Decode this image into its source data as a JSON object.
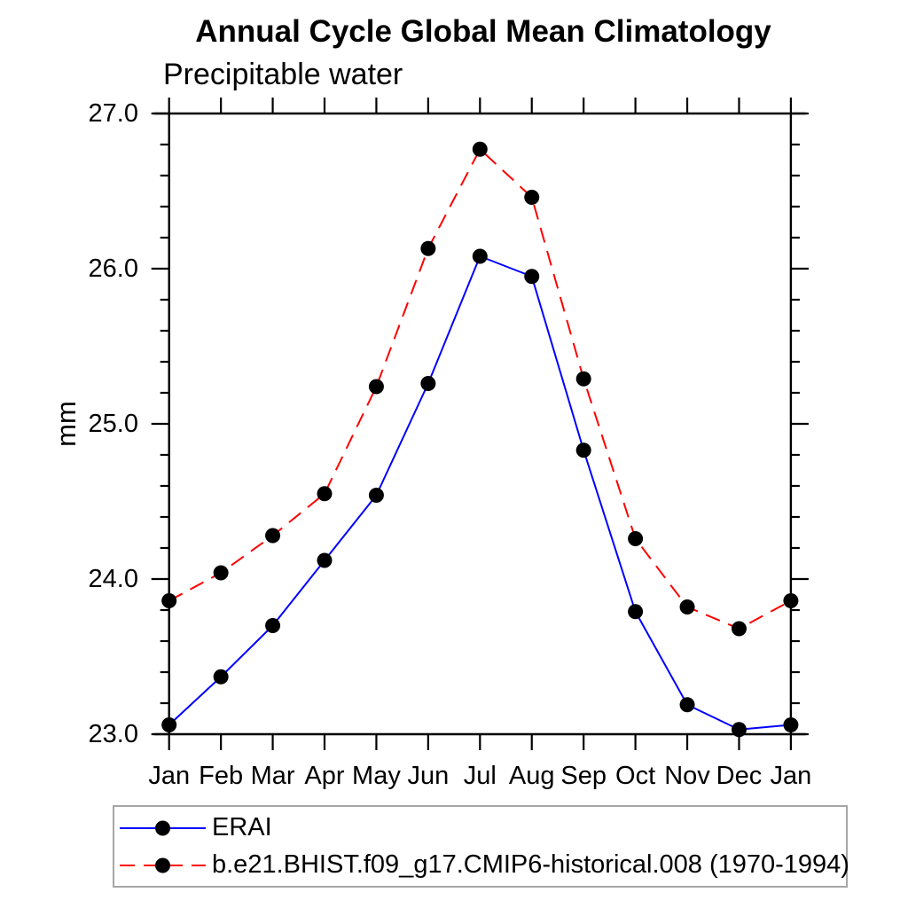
{
  "chart_data": {
    "type": "line",
    "title": "Annual Cycle Global Mean Climatology",
    "subtitle": "Precipitable water",
    "ylabel": "mm",
    "ylim": [
      23.0,
      27.0
    ],
    "yticks": [
      {
        "value": 23.0,
        "label": "23.0"
      },
      {
        "value": 24.0,
        "label": "24.0"
      },
      {
        "value": 25.0,
        "label": "25.0"
      },
      {
        "value": 26.0,
        "label": "26.0"
      },
      {
        "value": 27.0,
        "label": "27.0"
      }
    ],
    "minor_tick_step": 0.2,
    "categories": [
      "Jan",
      "Feb",
      "Mar",
      "Apr",
      "May",
      "Jun",
      "Jul",
      "Aug",
      "Sep",
      "Oct",
      "Nov",
      "Dec",
      "Jan"
    ],
    "series": [
      {
        "name": "ERAI",
        "color": "#0000ff",
        "line_style": "solid",
        "marker": "filled-circle",
        "marker_color": "#000000",
        "values": [
          23.06,
          23.37,
          23.7,
          24.12,
          24.54,
          25.26,
          26.08,
          25.95,
          24.83,
          23.79,
          23.19,
          23.03,
          23.06
        ]
      },
      {
        "name": "b.e21.BHIST.f09_g17.CMIP6-historical.008 (1970-1994)",
        "color": "#ff0000",
        "line_style": "dashed",
        "marker": "filled-circle",
        "marker_color": "#000000",
        "values": [
          23.86,
          24.04,
          24.28,
          24.55,
          25.24,
          26.13,
          26.77,
          26.46,
          25.29,
          24.26,
          23.82,
          23.68,
          23.86
        ]
      }
    ],
    "legend": {
      "position": "bottom-left",
      "border_color": "#a6a6a6"
    },
    "grid": false,
    "axis_color": "#000000"
  }
}
